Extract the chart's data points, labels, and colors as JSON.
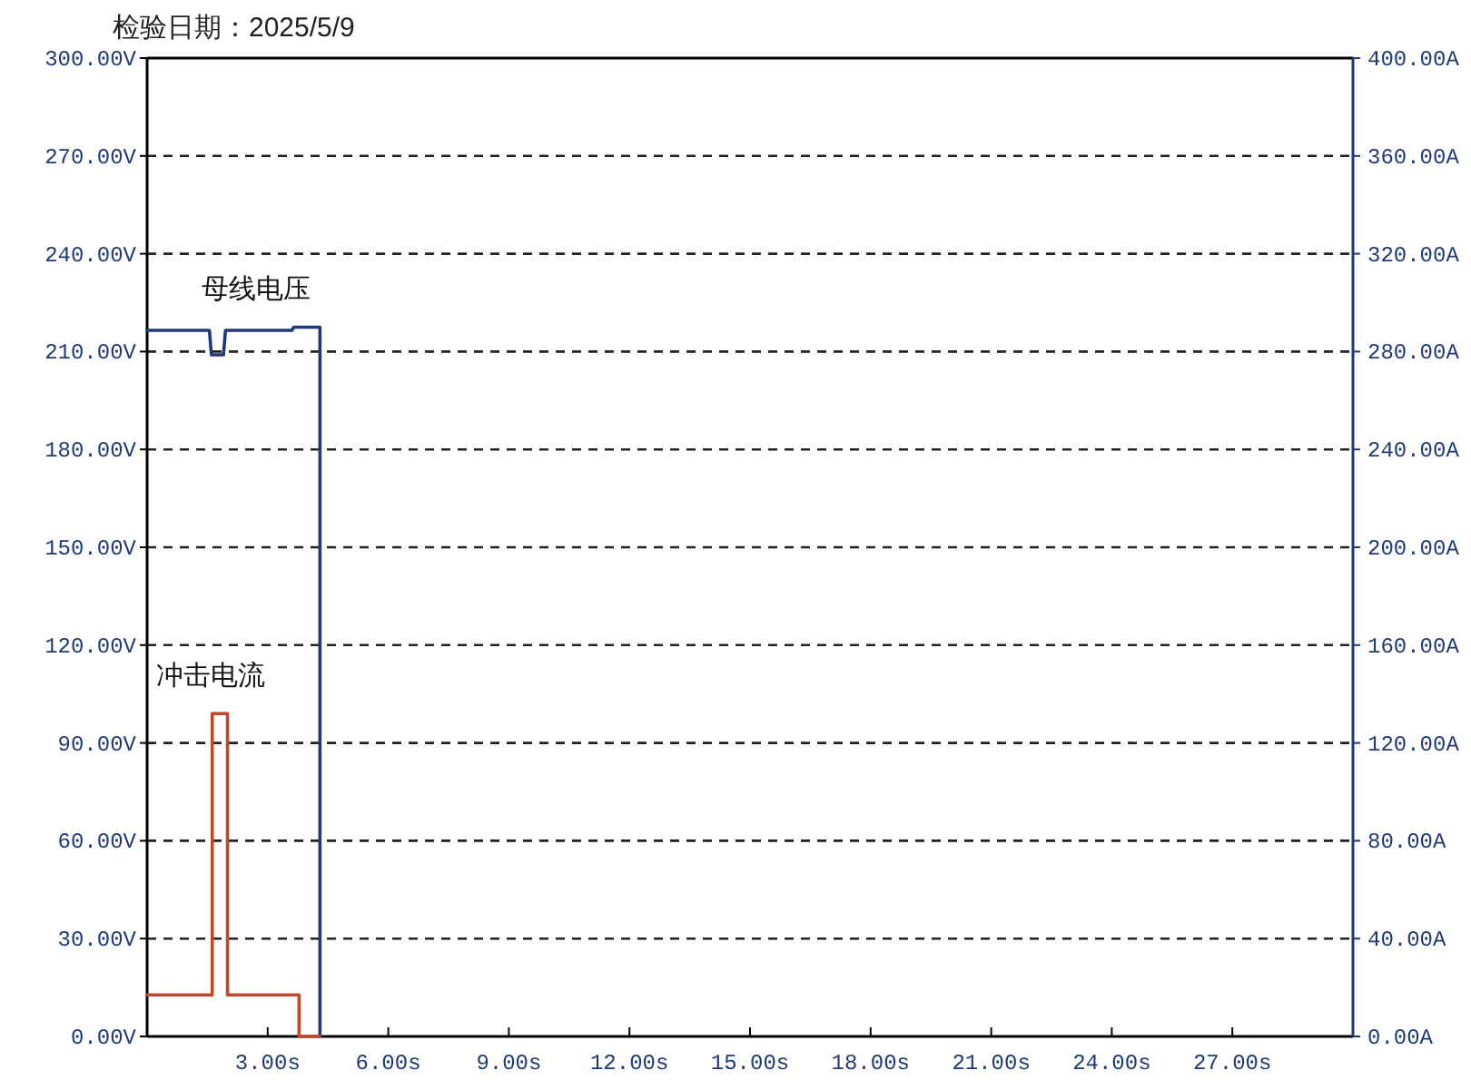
{
  "chart_data": {
    "type": "line",
    "title": "检验日期：2025/5/9",
    "xlim": [
      0,
      30
    ],
    "xticks": [
      {
        "value": 0,
        "label": null
      },
      {
        "value": 3,
        "label": "3.00s"
      },
      {
        "value": 6,
        "label": "6.00s"
      },
      {
        "value": 9,
        "label": "9.00s"
      },
      {
        "value": 12,
        "label": "12.00s"
      },
      {
        "value": 15,
        "label": "15.00s"
      },
      {
        "value": 18,
        "label": "18.00s"
      },
      {
        "value": 21,
        "label": "21.00s"
      },
      {
        "value": 24,
        "label": "24.00s"
      },
      {
        "value": 27,
        "label": "27.00s"
      }
    ],
    "ylim": [
      0,
      300
    ],
    "yticks": [
      {
        "value": 0,
        "label": "0.00V"
      },
      {
        "value": 30,
        "label": "30.00V"
      },
      {
        "value": 60,
        "label": "60.00V"
      },
      {
        "value": 90,
        "label": "90.00V"
      },
      {
        "value": 120,
        "label": "120.00V"
      },
      {
        "value": 150,
        "label": "150.00V"
      },
      {
        "value": 180,
        "label": "180.00V"
      },
      {
        "value": 210,
        "label": "210.00V"
      },
      {
        "value": 240,
        "label": "240.00V"
      },
      {
        "value": 270,
        "label": "270.00V"
      },
      {
        "value": 300,
        "label": "300.00V"
      }
    ],
    "y2lim": [
      0,
      400
    ],
    "y2ticks": [
      {
        "value": 0,
        "label": "0.00A"
      },
      {
        "value": 40,
        "label": "40.00A"
      },
      {
        "value": 80,
        "label": "80.00A"
      },
      {
        "value": 120,
        "label": "120.00A"
      },
      {
        "value": 160,
        "label": "160.00A"
      },
      {
        "value": 200,
        "label": "200.00A"
      },
      {
        "value": 240,
        "label": "240.00A"
      },
      {
        "value": 280,
        "label": "280.00A"
      },
      {
        "value": 320,
        "label": "320.00A"
      },
      {
        "value": 360,
        "label": "360.00A"
      },
      {
        "value": 400,
        "label": "400.00A"
      }
    ],
    "grid": "y",
    "line_style": "solid",
    "marker": "none",
    "series": [
      {
        "name": "母线电压",
        "color": "#1f3a78",
        "x": [
          0,
          1.55,
          1.6,
          1.9,
          1.95,
          3.6,
          3.65,
          4.3,
          4.3
        ],
        "values": [
          216.5,
          216.5,
          209,
          209,
          216.5,
          216.5,
          217.5,
          217.5,
          0
        ]
      },
      {
        "name": "冲击电流",
        "color": "#c4462a",
        "axis": "y2",
        "x": [
          0,
          1.62,
          1.62,
          2.0,
          2.0,
          3.78,
          3.78,
          4.3
        ],
        "values": [
          17,
          17,
          132,
          132,
          17,
          17,
          0,
          0
        ]
      }
    ]
  }
}
